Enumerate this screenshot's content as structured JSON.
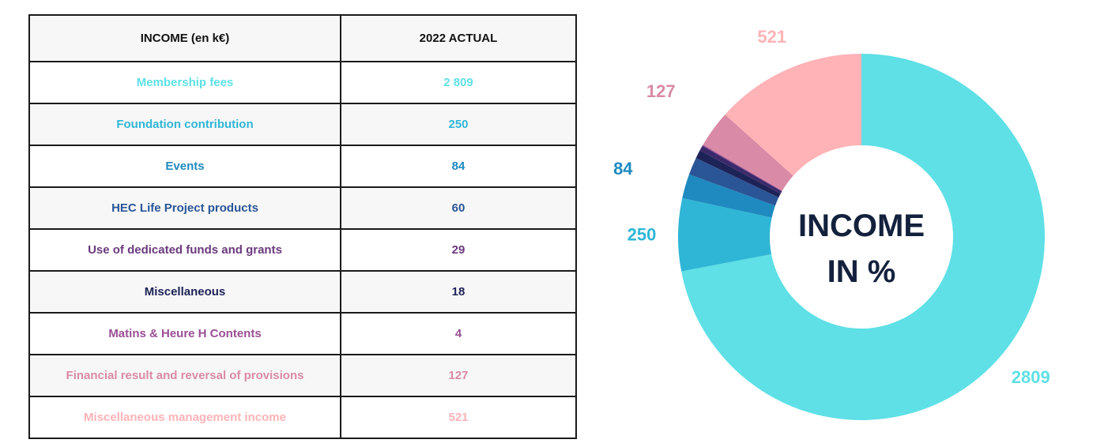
{
  "table": {
    "headers": [
      "INCOME (en k€)",
      "2022 ACTUAL"
    ],
    "rows": [
      {
        "label": "Membership fees",
        "value": "2 809",
        "color": "#5ee0e6"
      },
      {
        "label": "Foundation contribution",
        "value": "250",
        "color": "#2fb6d6"
      },
      {
        "label": "Events",
        "value": "84",
        "color": "#1e8ac0"
      },
      {
        "label": "HEC Life Project products",
        "value": "60",
        "color": "#2a5597"
      },
      {
        "label": "Use of dedicated funds and grants",
        "value": "29",
        "color": "#6b3a7d"
      },
      {
        "label": "Miscellaneous",
        "value": "18",
        "color": "#1d2357"
      },
      {
        "label": "Matins & Heure H Contents",
        "value": "4",
        "color": "#9a4f94"
      },
      {
        "label": "Financial result and reversal of provisions",
        "value": "127",
        "color": "#d98aa6"
      },
      {
        "label": "Miscellaneous management income",
        "value": "521",
        "color": "#ffb3b7"
      }
    ]
  },
  "chart_data": {
    "type": "pie",
    "title": "INCOME IN %",
    "title_lines": [
      "INCOME",
      "IN %"
    ],
    "donut": true,
    "start": "top",
    "direction": "clockwise",
    "slices": [
      {
        "label": "Membership fees",
        "value": 2809,
        "color": "#5ee0e6",
        "data_label": "2809"
      },
      {
        "label": "Foundation contribution",
        "value": 250,
        "color": "#2fb6d6",
        "data_label": "250"
      },
      {
        "label": "Events",
        "value": 84,
        "color": "#1e8ac0",
        "data_label": "84"
      },
      {
        "label": "HEC Life Project products",
        "value": 60,
        "color": "#2a5597",
        "data_label": ""
      },
      {
        "label": "Use of dedicated funds and grants",
        "value": 29,
        "color": "#1d2357",
        "data_label": ""
      },
      {
        "label": "Miscellaneous",
        "value": 18,
        "color": "#3b2a6b",
        "data_label": ""
      },
      {
        "label": "Matins & Heure H Contents",
        "value": 4,
        "color": "#9a4f94",
        "data_label": ""
      },
      {
        "label": "Financial result and reversal of provisions",
        "value": 127,
        "color": "#d98aa6",
        "data_label": "127"
      },
      {
        "label": "Miscellaneous management income",
        "value": 521,
        "color": "#ffb3b7",
        "data_label": "521"
      }
    ],
    "label_colors": {
      "2809": "#5ee0e6",
      "250": "#2fb6d6",
      "84": "#1e8ac0",
      "127": "#d98aa6",
      "521": "#ffb3b7"
    }
  }
}
